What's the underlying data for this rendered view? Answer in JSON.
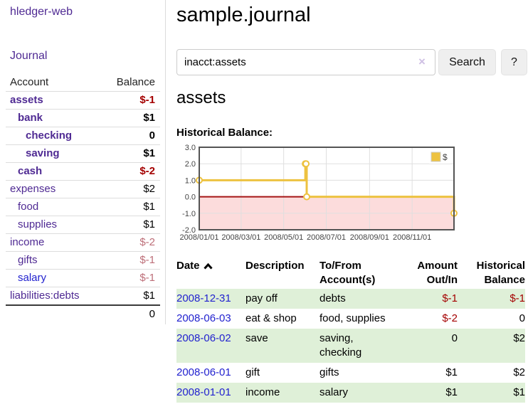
{
  "app": {
    "title": "hledger-web",
    "nav_journal": "Journal"
  },
  "sidebar": {
    "columns": {
      "account": "Account",
      "balance": "Balance"
    },
    "accounts": [
      {
        "name": "assets",
        "level": 1,
        "balance": "$-1",
        "bold": true,
        "neg": "strong"
      },
      {
        "name": "bank",
        "level": 2,
        "balance": "$1",
        "bold": true
      },
      {
        "name": "checking",
        "level": 3,
        "balance": "0",
        "bold": true
      },
      {
        "name": "saving",
        "level": 3,
        "balance": "$1",
        "bold": true
      },
      {
        "name": "cash",
        "level": 2,
        "balance": "$-2",
        "bold": true,
        "neg": "strong"
      },
      {
        "name": "expenses",
        "level": 1,
        "balance": "$2"
      },
      {
        "name": "food",
        "level": 2,
        "balance": "$1"
      },
      {
        "name": "supplies",
        "level": 2,
        "balance": "$1"
      },
      {
        "name": "income",
        "level": 1,
        "balance": "$-2",
        "neg": "soft"
      },
      {
        "name": "gifts",
        "level": 2,
        "balance": "$-1",
        "neg": "soft"
      },
      {
        "name": "salary",
        "level": 2,
        "balance": "$-1",
        "neg": "soft",
        "link": "blue"
      },
      {
        "name": "liabilities:debts",
        "level": 1,
        "balance": "$1"
      }
    ],
    "total": "0"
  },
  "main": {
    "title": "sample.journal",
    "search": {
      "value": "inacct:assets",
      "clear_icon": "×",
      "button": "Search",
      "help_button": "?"
    },
    "account_heading": "assets",
    "chart_heading": "Historical Balance:"
  },
  "chart_data": {
    "type": "line",
    "title": "Historical Balance:",
    "step": true,
    "series": [
      {
        "name": "$",
        "color": "#edc240",
        "points": [
          [
            "2008-01-01",
            1
          ],
          [
            "2008-06-01",
            2
          ],
          [
            "2008-06-02",
            2
          ],
          [
            "2008-06-03",
            0
          ],
          [
            "2008-12-31",
            -1
          ]
        ]
      }
    ],
    "x_range": [
      "2008-01-01",
      "2008-12-31"
    ],
    "ylim": [
      -2,
      3
    ],
    "y_ticks": [
      3.0,
      2.0,
      1.0,
      0.0,
      -1.0,
      -2.0
    ],
    "x_ticks": [
      "2008/01/01",
      "2008/03/01",
      "2008/05/01",
      "2008/07/01",
      "2008/09/01",
      "2008/11/01"
    ],
    "grid": true,
    "legend": {
      "label": "$",
      "position": "top-right"
    },
    "colors": {
      "border": "#545454",
      "grid": "#dfdfdf",
      "tick_text": "#444444",
      "negative_region": "#fcdcdc",
      "zero_line": "#a51515",
      "marker_fill": "#ffffff"
    }
  },
  "register": {
    "headers": [
      {
        "l1": "Date",
        "l2": "",
        "align": "l",
        "sorted": true
      },
      {
        "l1": "Description",
        "l2": "",
        "align": "l"
      },
      {
        "l1": "To/From",
        "l2": "Account(s)",
        "align": "l"
      },
      {
        "l1": "Amount",
        "l2": "Out/In",
        "align": "r"
      },
      {
        "l1": "Historical",
        "l2": "Balance",
        "align": "r"
      }
    ],
    "rows": [
      {
        "date": "2008-12-31",
        "description": "pay off",
        "accounts": "debts",
        "amount": "$-1",
        "amount_neg": true,
        "balance": "$-1",
        "balance_neg": true,
        "stripe": true
      },
      {
        "date": "2008-06-03",
        "description": "eat & shop",
        "accounts": "food, supplies",
        "amount": "$-2",
        "amount_neg": true,
        "balance": "0",
        "balance_neg": false,
        "stripe": false
      },
      {
        "date": "2008-06-02",
        "description": "save",
        "accounts": "saving, checking",
        "amount": "0",
        "amount_neg": false,
        "balance": "$2",
        "balance_neg": false,
        "stripe": true
      },
      {
        "date": "2008-06-01",
        "description": "gift",
        "accounts": "gifts",
        "amount": "$1",
        "amount_neg": false,
        "balance": "$2",
        "balance_neg": false,
        "stripe": false
      },
      {
        "date": "2008-01-01",
        "description": "income",
        "accounts": "salary",
        "amount": "$1",
        "amount_neg": false,
        "balance": "$1",
        "balance_neg": false,
        "stripe": true
      }
    ]
  }
}
